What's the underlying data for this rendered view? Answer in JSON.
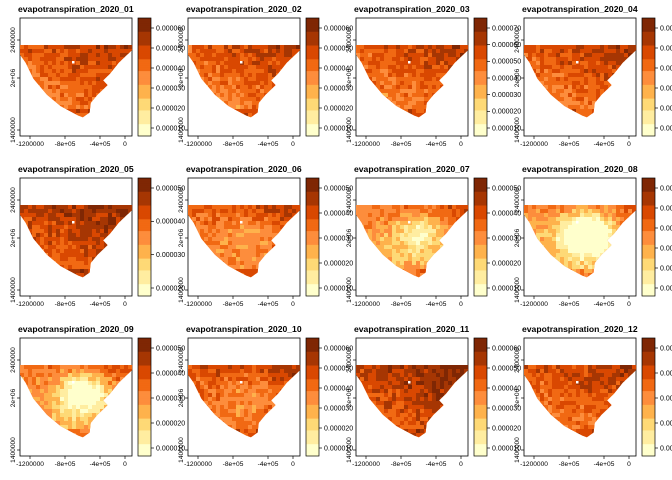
{
  "colors": {
    "ramp": [
      "#FFFFCC",
      "#FFEDA0",
      "#FED976",
      "#FEB24C",
      "#FD8D3C",
      "#F16913",
      "#D94801",
      "#A63603",
      "#7F2704"
    ]
  },
  "chart_data": [
    {
      "type": "heatmap",
      "title": "evapotranspiration_2020_01",
      "xticks": [
        "-1200000",
        "-8e+05",
        "-4e+05",
        "0"
      ],
      "yticks": [
        "2400000",
        "2e+06",
        "1400000"
      ],
      "legend_ticks": [
        "0.000060",
        "0.000050",
        "0.000040",
        "0.000030",
        "0.000020",
        "0.000010"
      ],
      "legend_placement": "right",
      "grid": false
    },
    {
      "type": "heatmap",
      "title": "evapotranspiration_2020_02",
      "xticks": [
        "-1200000",
        "-8e+05",
        "-4e+05",
        "0"
      ],
      "yticks": [
        "2400000",
        "2e+06",
        "1400000"
      ],
      "legend_ticks": [
        "0.000060",
        "0.000050",
        "0.000040",
        "0.000030",
        "0.000020",
        "0.000010"
      ],
      "legend_placement": "right",
      "grid": false
    },
    {
      "type": "heatmap",
      "title": "evapotranspiration_2020_03",
      "xticks": [
        "-1200000",
        "-8e+05",
        "-4e+05",
        "0"
      ],
      "yticks": [
        "2400000",
        "2e+06",
        "1400000"
      ],
      "legend_ticks": [
        "0.000070",
        "0.000060",
        "0.000050",
        "0.000040",
        "0.000030",
        "0.000020",
        "0.000010"
      ],
      "legend_placement": "right",
      "grid": false
    },
    {
      "type": "heatmap",
      "title": "evapotranspiration_2020_04",
      "xticks": [
        "-1200000",
        "-8e+05",
        "-4e+05",
        "0"
      ],
      "yticks": [
        "2400000",
        "2e+06",
        "1400000"
      ],
      "legend_ticks": [
        "0.0000",
        "0.000",
        "0.000",
        "0.000",
        "0.000",
        "0.000"
      ],
      "legend_placement": "right",
      "grid": false
    },
    {
      "type": "heatmap",
      "title": "evapotranspiration_2020_05",
      "xticks": [
        "-1200000",
        "-8e+05",
        "-4e+05",
        "0"
      ],
      "yticks": [
        "2400000",
        "2e+06",
        "1400000"
      ],
      "legend_ticks": [
        "0.000050",
        "0.000040",
        "0.000030",
        "0.000020"
      ],
      "legend_placement": "right",
      "grid": false
    },
    {
      "type": "heatmap",
      "title": "evapotranspiration_2020_06",
      "xticks": [
        "-1200000",
        "-8e+05",
        "-4e+05",
        "0"
      ],
      "yticks": [
        "2400000",
        "2e+06",
        "1400000"
      ],
      "legend_ticks": [
        "0.000050",
        "0.000040",
        "0.000030",
        "0.000020",
        "0.000010"
      ],
      "legend_placement": "right",
      "grid": false
    },
    {
      "type": "heatmap",
      "title": "evapotranspiration_2020_07",
      "xticks": [
        "-1200000",
        "-8e+05",
        "-4e+05",
        "0"
      ],
      "yticks": [
        "2400000",
        "2e+06",
        "1400000"
      ],
      "legend_ticks": [
        "0.000050",
        "0.000040",
        "0.000030",
        "0.000020",
        "0.000010"
      ],
      "legend_placement": "right",
      "grid": false
    },
    {
      "type": "heatmap",
      "title": "evapotranspiration_2020_08",
      "xticks": [
        "-1200000",
        "-8e+05",
        "-4e+05",
        "0"
      ],
      "yticks": [
        "2400000",
        "2e+06",
        "1400000"
      ],
      "legend_ticks": [
        "0.00",
        "0.00",
        "0.00",
        "0.00",
        "0.00",
        "0.00"
      ],
      "legend_placement": "right",
      "grid": false
    },
    {
      "type": "heatmap",
      "title": "evapotranspiration_2020_09",
      "xticks": [
        "-1200000",
        "-8e+05",
        "-4e+05",
        "0"
      ],
      "yticks": [
        "2400000",
        "2e+06",
        "1400000"
      ],
      "legend_ticks": [
        "0.000050",
        "0.000040",
        "0.000030",
        "0.000020",
        "0.000010"
      ],
      "legend_placement": "right",
      "grid": false
    },
    {
      "type": "heatmap",
      "title": "evapotranspiration_2020_10",
      "xticks": [
        "-1200000",
        "-8e+05",
        "-4e+05",
        "0"
      ],
      "yticks": [
        "2400000",
        "2e+06",
        "1400000"
      ],
      "legend_ticks": [
        "0.000060",
        "0.000050",
        "0.000040",
        "0.000030",
        "0.000020",
        "0.000010"
      ],
      "legend_placement": "right",
      "grid": false
    },
    {
      "type": "heatmap",
      "title": "evapotranspiration_2020_11",
      "xticks": [
        "-1200000",
        "-8e+05",
        "-4e+05",
        "0"
      ],
      "yticks": [
        "2400000",
        "2e+06",
        "1400000"
      ],
      "legend_ticks": [
        "0.000060",
        "0.000050",
        "0.000040",
        "0.000030",
        "0.000020",
        "0.000010"
      ],
      "legend_placement": "right",
      "grid": false
    },
    {
      "type": "heatmap",
      "title": "evapotranspiration_2020_12",
      "xticks": [
        "-1200000",
        "-8e+05",
        "-4e+05",
        "0"
      ],
      "yticks": [
        "2400000",
        "2e+06",
        "1400000"
      ],
      "legend_ticks": [
        "0.000050",
        "0.000040",
        "0.000030",
        "0.000020",
        "0.000010"
      ],
      "legend_placement": "right",
      "grid": false
    }
  ]
}
